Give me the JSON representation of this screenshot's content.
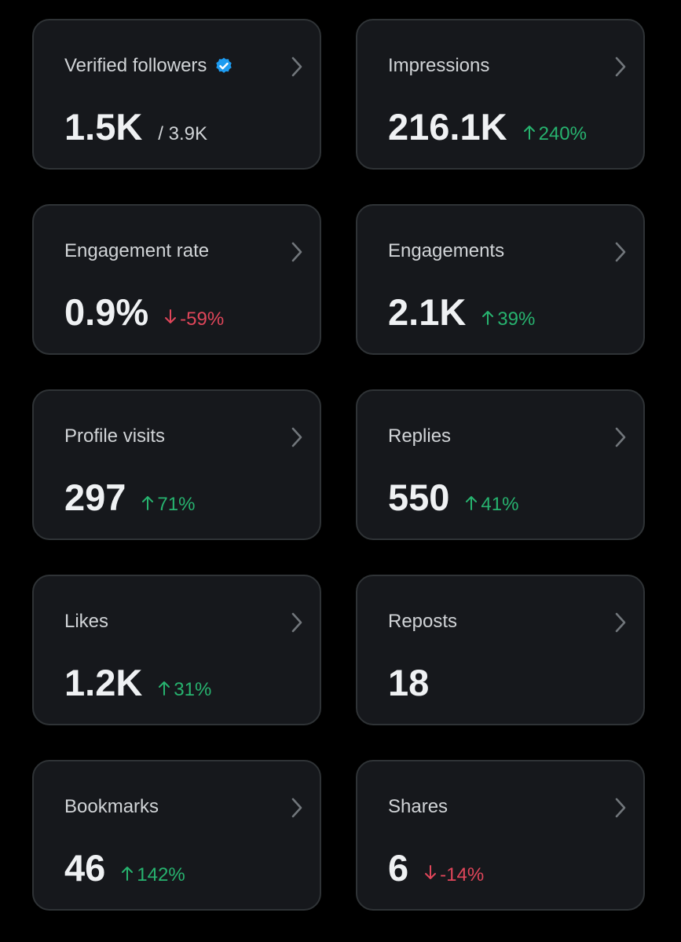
{
  "cards": [
    {
      "label": "Verified followers",
      "value": "1.5K",
      "total": "/ 3.9K",
      "verified": true
    },
    {
      "label": "Impressions",
      "value": "216.1K",
      "change": "240%",
      "direction": "up"
    },
    {
      "label": "Engagement rate",
      "value": "0.9%",
      "change": "-59%",
      "direction": "down"
    },
    {
      "label": "Engagements",
      "value": "2.1K",
      "change": "39%",
      "direction": "up"
    },
    {
      "label": "Profile visits",
      "value": "297",
      "change": "71%",
      "direction": "up"
    },
    {
      "label": "Replies",
      "value": "550",
      "change": "41%",
      "direction": "up"
    },
    {
      "label": "Likes",
      "value": "1.2K",
      "change": "31%",
      "direction": "up"
    },
    {
      "label": "Reposts",
      "value": "18"
    },
    {
      "label": "Bookmarks",
      "value": "46",
      "change": "142%",
      "direction": "up"
    },
    {
      "label": "Shares",
      "value": "6",
      "change": "-14%",
      "direction": "down"
    }
  ]
}
